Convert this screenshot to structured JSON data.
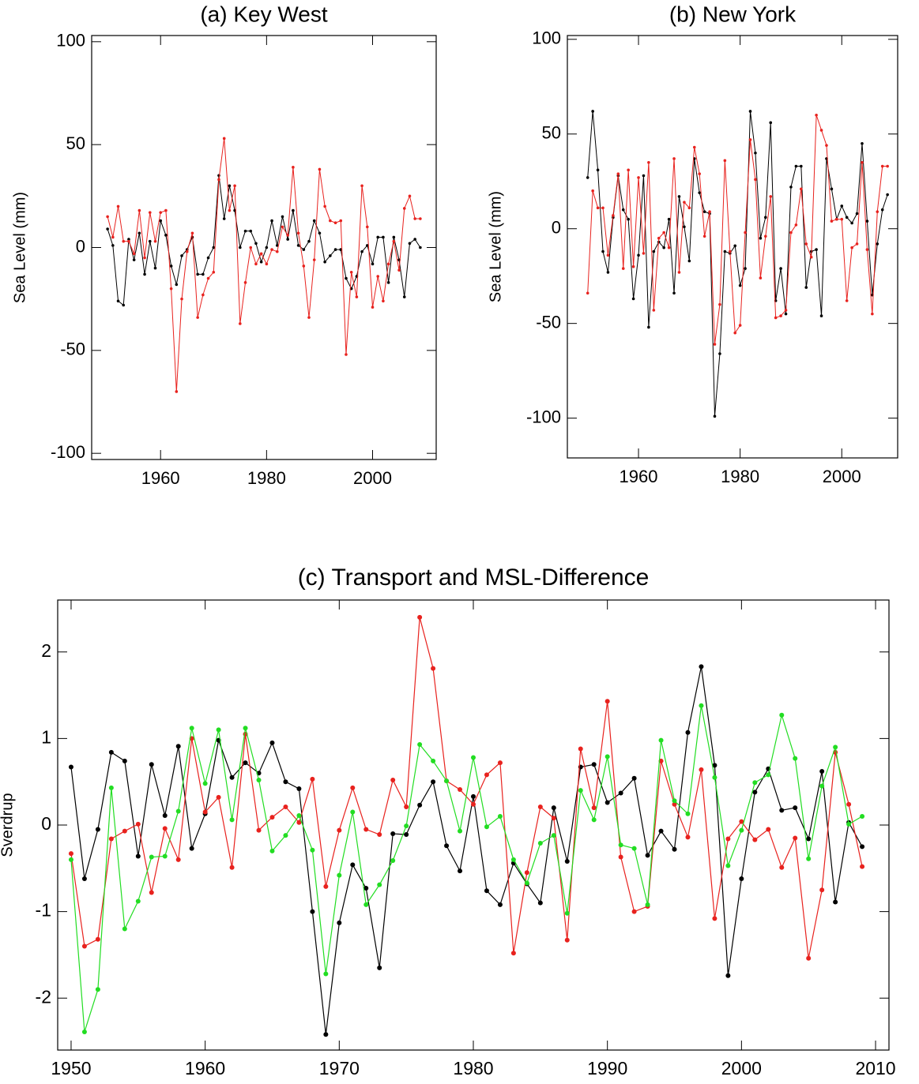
{
  "chart_data": [
    {
      "type": "line",
      "title": "(a) Key West",
      "y_label": "Sea Level (mm)",
      "x": [
        1950,
        1951,
        1952,
        1953,
        1954,
        1955,
        1956,
        1957,
        1958,
        1959,
        1960,
        1961,
        1962,
        1963,
        1964,
        1965,
        1966,
        1967,
        1968,
        1969,
        1970,
        1971,
        1972,
        1973,
        1974,
        1975,
        1976,
        1977,
        1978,
        1979,
        1980,
        1981,
        1982,
        1983,
        1984,
        1985,
        1986,
        1987,
        1988,
        1989,
        1990,
        1991,
        1992,
        1993,
        1994,
        1995,
        1996,
        1997,
        1998,
        1999,
        2000,
        2001,
        2002,
        2003,
        2004,
        2005,
        2006,
        2007,
        2008,
        2009
      ],
      "series": [
        {
          "color": "#000000",
          "values": [
            9,
            1,
            -26,
            -28,
            4,
            -6,
            7,
            -13,
            3,
            -10,
            13,
            6,
            -9,
            -18,
            -4,
            -1,
            5,
            -13,
            -13,
            -5,
            0,
            35,
            14,
            30,
            18,
            0,
            8,
            8,
            2,
            -7,
            0,
            13,
            1,
            15,
            4,
            18,
            1,
            -1,
            3,
            13,
            7,
            -7,
            -4,
            -1,
            -1,
            -15,
            -20,
            -14,
            -2,
            1,
            -8,
            5,
            5,
            -17,
            5,
            -6,
            -24,
            2,
            4,
            0
          ]
        },
        {
          "color": "#e8221e",
          "values": [
            15,
            5,
            20,
            3,
            3,
            -3,
            18,
            -5,
            17,
            3,
            17,
            18,
            -20,
            -70,
            -25,
            -2,
            7,
            -34,
            -23,
            -15,
            -12,
            33,
            53,
            18,
            30,
            -37,
            -17,
            0,
            -8,
            -3,
            -8,
            -1,
            -2,
            10,
            6,
            39,
            7,
            -9,
            -34,
            -6,
            38,
            20,
            13,
            12,
            13,
            -52,
            -12,
            -24,
            30,
            10,
            -29,
            -14,
            -26,
            -8,
            3,
            -11,
            19,
            25,
            14,
            14
          ]
        }
      ],
      "xlim": [
        1947,
        2012
      ],
      "ylim": [
        -103,
        103
      ],
      "xticks": [
        1960,
        1980,
        2000
      ],
      "yticks": [
        -100,
        -50,
        0,
        50,
        100
      ]
    },
    {
      "type": "line",
      "title": "(b) New York",
      "y_label": "Sea Level (mm)",
      "x": [
        1950,
        1951,
        1952,
        1953,
        1954,
        1955,
        1956,
        1957,
        1958,
        1959,
        1960,
        1961,
        1962,
        1963,
        1964,
        1965,
        1966,
        1967,
        1968,
        1969,
        1970,
        1971,
        1972,
        1973,
        1974,
        1975,
        1976,
        1977,
        1978,
        1979,
        1980,
        1981,
        1982,
        1983,
        1984,
        1985,
        1986,
        1987,
        1988,
        1989,
        1990,
        1991,
        1992,
        1993,
        1994,
        1995,
        1996,
        1997,
        1998,
        1999,
        2000,
        2001,
        2002,
        2003,
        2004,
        2005,
        2006,
        2007,
        2008,
        2009
      ],
      "series": [
        {
          "color": "#000000",
          "values": [
            27,
            62,
            31,
            -12,
            -23,
            6,
            28,
            10,
            5,
            -37,
            -14,
            28,
            -52,
            -12,
            -7,
            -10,
            5,
            -34,
            17,
            1,
            -17,
            37,
            19,
            9,
            8,
            -99,
            -66,
            -12,
            -13,
            -9,
            -30,
            -21,
            62,
            40,
            -5,
            6,
            56,
            -38,
            -21,
            -45,
            22,
            33,
            33,
            -31,
            -12,
            -11,
            -46,
            37,
            21,
            5,
            12,
            6,
            3,
            8,
            45,
            4,
            -35,
            -8,
            10,
            18
          ]
        },
        {
          "color": "#e8221e",
          "values": [
            -34,
            20,
            11,
            11,
            -14,
            7,
            29,
            -21,
            31,
            -20,
            27,
            -13,
            35,
            -43,
            -5,
            -2,
            -10,
            37,
            -23,
            14,
            11,
            43,
            29,
            -4,
            9,
            -61,
            -40,
            36,
            -12,
            -55,
            -51,
            -2,
            47,
            26,
            -26,
            -4,
            17,
            -47,
            -46,
            -43,
            -2,
            2,
            21,
            -8,
            -15,
            60,
            52,
            44,
            4,
            5,
            5,
            -38,
            -10,
            -8,
            35,
            -11,
            -45,
            9,
            33,
            33
          ]
        }
      ],
      "xlim": [
        1946,
        2011
      ],
      "ylim": [
        -121,
        102
      ],
      "xticks": [
        1960,
        1980,
        2000
      ],
      "yticks": [
        -100,
        -50,
        0,
        50,
        100
      ]
    },
    {
      "type": "line",
      "title": "(c) Transport and MSL-Difference",
      "y_label": "Sverdrup",
      "x": [
        1950,
        1951,
        1952,
        1953,
        1954,
        1955,
        1956,
        1957,
        1958,
        1959,
        1960,
        1961,
        1962,
        1963,
        1964,
        1965,
        1966,
        1967,
        1968,
        1969,
        1970,
        1971,
        1972,
        1973,
        1974,
        1975,
        1976,
        1977,
        1978,
        1979,
        1980,
        1981,
        1982,
        1983,
        1984,
        1985,
        1986,
        1987,
        1988,
        1989,
        1990,
        1991,
        1992,
        1993,
        1994,
        1995,
        1996,
        1997,
        1998,
        1999,
        2000,
        2001,
        2002,
        2003,
        2004,
        2005,
        2006,
        2007,
        2008,
        2009
      ],
      "series": [
        {
          "color": "#000000",
          "values": [
            0.67,
            -0.62,
            -0.05,
            0.84,
            0.74,
            -0.36,
            0.7,
            0.11,
            0.91,
            -0.27,
            0.13,
            0.98,
            0.55,
            0.72,
            0.6,
            0.95,
            0.5,
            0.42,
            -1.0,
            -2.42,
            -1.13,
            -0.46,
            -0.73,
            -1.65,
            -0.1,
            -0.11,
            0.23,
            0.5,
            -0.24,
            -0.53,
            0.33,
            -0.76,
            -0.92,
            -0.44,
            -0.68,
            -0.9,
            0.2,
            -0.42,
            0.67,
            0.7,
            0.26,
            0.37,
            0.54,
            -0.35,
            -0.07,
            -0.28,
            1.07,
            1.83,
            0.69,
            -1.74,
            -0.62,
            0.38,
            0.65,
            0.17,
            0.2,
            -0.16,
            0.62,
            -0.89,
            0.03,
            -0.25
          ]
        },
        {
          "color": "#e8221e",
          "values": [
            -0.33,
            -1.4,
            -1.32,
            -0.16,
            -0.07,
            0.01,
            -0.78,
            -0.04,
            -0.4,
            1.0,
            0.15,
            0.32,
            -0.49,
            1.05,
            -0.06,
            0.09,
            0.21,
            0.03,
            0.53,
            -0.71,
            -0.06,
            0.43,
            -0.05,
            -0.11,
            0.52,
            0.21,
            2.4,
            1.81,
            0.51,
            0.41,
            0.24,
            0.58,
            0.72,
            -1.48,
            -0.55,
            0.21,
            0.08,
            -1.33,
            0.88,
            0.2,
            1.43,
            -0.37,
            -1.0,
            -0.94,
            0.74,
            0.24,
            -0.14,
            0.64,
            -1.08,
            -0.16,
            0.04,
            -0.17,
            -0.05,
            -0.49,
            -0.15,
            -1.54,
            -0.75,
            0.84,
            0.24,
            -0.48
          ]
        },
        {
          "color": "#22dd22",
          "values": [
            -0.4,
            -2.39,
            -1.9,
            0.43,
            -1.2,
            -0.88,
            -0.37,
            -0.36,
            0.16,
            1.12,
            0.48,
            1.1,
            0.06,
            1.12,
            0.52,
            -0.3,
            -0.12,
            0.11,
            -0.29,
            -1.72,
            -0.58,
            0.15,
            -0.92,
            -0.69,
            -0.41,
            -0.01,
            0.93,
            0.74,
            0.51,
            -0.07,
            0.78,
            -0.02,
            0.1,
            -0.4,
            -0.67,
            -0.21,
            -0.12,
            -1.02,
            0.4,
            0.06,
            0.79,
            -0.23,
            -0.27,
            -0.92,
            0.98,
            0.28,
            0.13,
            1.38,
            0.55,
            -0.47,
            -0.06,
            0.49,
            0.58,
            1.27,
            0.77,
            -0.39,
            0.45,
            0.9,
            0.01,
            0.1
          ]
        }
      ],
      "xlim": [
        1949,
        2011
      ],
      "ylim": [
        -2.6,
        2.6
      ],
      "xticks": [
        1950,
        1960,
        1970,
        1980,
        1990,
        2000,
        2010
      ],
      "yticks": [
        -2,
        -1,
        0,
        1,
        2
      ]
    }
  ]
}
